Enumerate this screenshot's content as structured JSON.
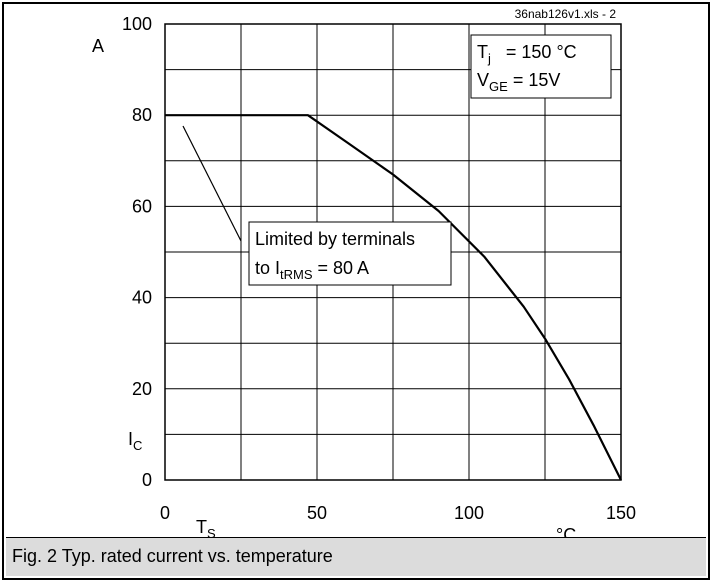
{
  "file_label": "36nab126v1.xls - 2",
  "caption": "Fig. 2 Typ. rated current vs. temperature",
  "conditions": {
    "line1_main": "T",
    "line1_sub": "j",
    "line1_rest": "   = 150 °C",
    "line2_main": "V",
    "line2_sub": "GE",
    "line2_rest": " = 15V"
  },
  "annotation": {
    "line1": "Limited by terminals",
    "line2_main": "to I",
    "line2_sub": "tRMS",
    "line2_rest": " = 80 A"
  },
  "chart_data": {
    "type": "line",
    "title": "",
    "xlabel_main": "T",
    "xlabel_sub": "S",
    "x_unit": "°C",
    "ylabel_main": "I",
    "ylabel_sub": "C",
    "y_unit": "A",
    "xlim": [
      0,
      150
    ],
    "ylim": [
      0,
      100
    ],
    "x_ticks": [
      0,
      50,
      100,
      150
    ],
    "y_ticks": [
      0,
      20,
      40,
      60,
      80,
      100
    ],
    "grid": true,
    "series": [
      {
        "x": [
          0,
          47,
          60,
          75,
          90,
          105,
          118,
          125,
          133,
          141,
          150
        ],
        "y": [
          80,
          80,
          74,
          67,
          59,
          49,
          38,
          31,
          22,
          12,
          0
        ]
      }
    ]
  },
  "colors": {
    "line": "#000000",
    "grid": "#000000",
    "caption_bg": "#dcdcdc"
  }
}
